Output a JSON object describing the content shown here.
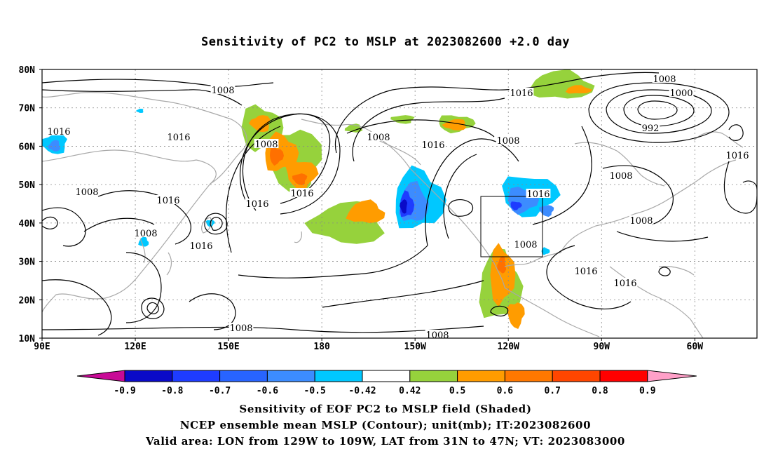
{
  "title": "Sensitivity of PC2 to MSLP at 2023082600 +2.0 day",
  "footer": {
    "line1": "Sensitivity of EOF PC2 to MSLP field (Shaded)",
    "line2": "NCEP ensemble mean MSLP (Contour); unit(mb); IT:2023082600",
    "line3": "Valid area: LON from 129W to 109W, LAT from 31N to 47N; VT: 2023083000"
  },
  "map": {
    "lat_labels": [
      "80N",
      "70N",
      "60N",
      "50N",
      "40N",
      "30N",
      "20N",
      "10N"
    ],
    "lon_labels": [
      "90E",
      "120E",
      "150E",
      "180",
      "150W",
      "120W",
      "90W",
      "60W"
    ],
    "valid_box": {
      "lon_from": "129W",
      "lon_to": "109W",
      "lat_from": "31N",
      "lat_to": "47N"
    },
    "contour_labels": [
      {
        "text": "1008"
      },
      {
        "text": "1008"
      },
      {
        "text": "1000"
      },
      {
        "text": "992"
      },
      {
        "text": "1016"
      },
      {
        "text": "1016"
      },
      {
        "text": "1016"
      },
      {
        "text": "1008"
      },
      {
        "text": "1016"
      },
      {
        "text": "1008"
      },
      {
        "text": "1016"
      },
      {
        "text": "1008"
      },
      {
        "text": "1016"
      },
      {
        "text": "1016"
      },
      {
        "text": "1008"
      },
      {
        "text": "1016"
      },
      {
        "text": "1008"
      },
      {
        "text": "1016"
      },
      {
        "text": "1008"
      },
      {
        "text": "1008"
      },
      {
        "text": "1008"
      },
      {
        "text": "1016"
      },
      {
        "text": "1016"
      },
      {
        "text": "1008"
      },
      {
        "text": "1008"
      },
      {
        "text": "1016"
      }
    ]
  },
  "colorbar": {
    "labels": [
      "-0.9",
      "-0.8",
      "-0.7",
      "-0.6",
      "-0.5",
      "-0.42",
      "0.42",
      "0.5",
      "0.6",
      "0.7",
      "0.8",
      "0.9"
    ],
    "colors": [
      "#0a0ac8",
      "#1e3cff",
      "#2864ff",
      "#3c8cff",
      "#00c8ff",
      "#ffffff",
      "#96d23c",
      "#ff9c00",
      "#ff7800",
      "#ff4600",
      "#ff0000"
    ],
    "under_color": "#c80a96",
    "over_color": "#ffa0c8"
  },
  "shading_colors": {
    "green": "#96d23c",
    "orange": "#ff9c00",
    "darkorange": "#ff7000",
    "cyan": "#00c8ff",
    "blue": "#3c8cff",
    "darkblue": "#1e3cff",
    "navy": "#0a0ac8"
  }
}
